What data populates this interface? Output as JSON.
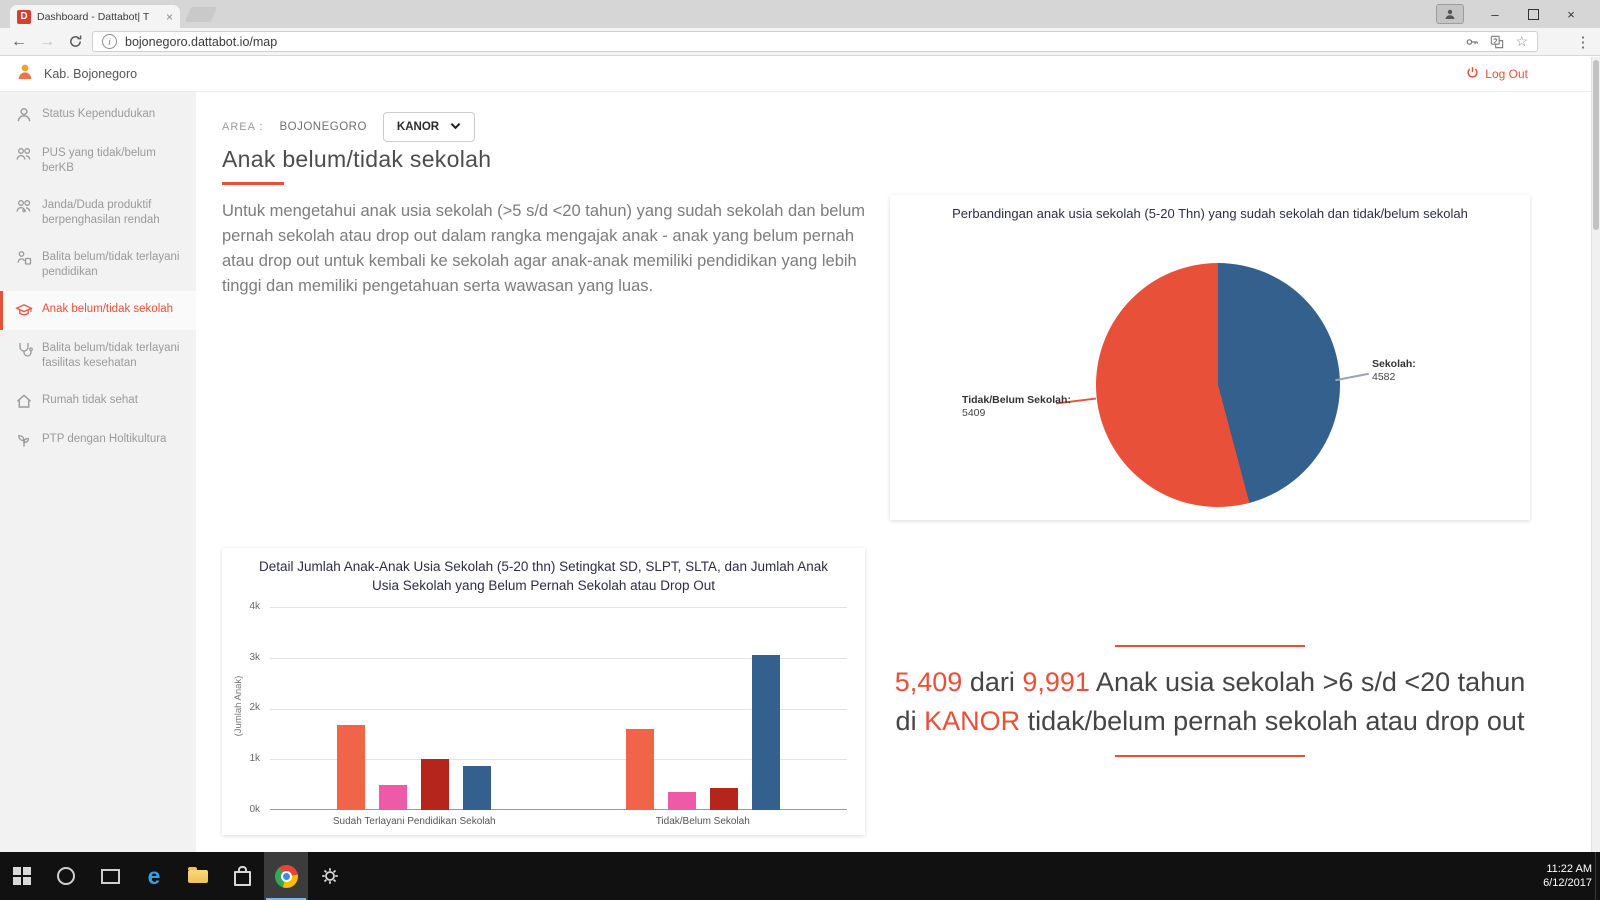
{
  "browser": {
    "tab_title": "Dashboard - Dattabot| T",
    "tab_favicon_letter": "D",
    "url": "bojonegoro.dattabot.io/map"
  },
  "header": {
    "brand": "Kab. Bojonegoro",
    "logout_label": "Log Out"
  },
  "sidebar": {
    "items": [
      {
        "label": "Status Kependudukan",
        "icon": "person-icon",
        "active": false
      },
      {
        "label": "PUS yang tidak/belum berKB",
        "icon": "couple-icon",
        "active": false
      },
      {
        "label": "Janda/Duda produktif berpenghasilan rendah",
        "icon": "family-icon",
        "active": false
      },
      {
        "label": "Balita belum/tidak terlayani pendidikan",
        "icon": "child-education-icon",
        "active": false
      },
      {
        "label": "Anak belum/tidak sekolah",
        "icon": "school-icon",
        "active": true
      },
      {
        "label": "Balita belum/tidak terlayani fasilitas kesehatan",
        "icon": "child-health-icon",
        "active": false
      },
      {
        "label": "Rumah tidak sehat",
        "icon": "house-icon",
        "active": false
      },
      {
        "label": "PTP dengan Holtikultura",
        "icon": "plant-icon",
        "active": false
      }
    ]
  },
  "main": {
    "area_label": "AREA :",
    "area_region": "BOJONEGORO",
    "area_dropdown_value": "KANOR",
    "page_title": "Anak belum/tidak sekolah",
    "description": "Untuk mengetahui anak usia sekolah (>5 s/d <20 tahun) yang sudah sekolah dan belum pernah sekolah atau drop out dalam rangka mengajak anak - anak yang belum pernah atau drop out untuk kembali ke sekolah agar anak-anak memiliki pendidikan yang lebih tinggi dan memiliki pengetahuan serta wawasan yang luas."
  },
  "summary": {
    "highlight_color": "#e8503a",
    "segments": [
      {
        "text": "5,409",
        "highlight": true
      },
      {
        "text": " dari ",
        "highlight": false
      },
      {
        "text": "9,991",
        "highlight": true
      },
      {
        "text": " Anak usia sekolah >6 s/d <20 tahun di ",
        "highlight": false
      },
      {
        "text": "KANOR",
        "highlight": true
      },
      {
        "text": " tidak/belum pernah sekolah atau drop out",
        "highlight": false
      }
    ]
  },
  "taskbar": {
    "time": "11:22 AM",
    "date": "6/12/2017",
    "apps": [
      {
        "icon": "start-icon",
        "active": false
      },
      {
        "icon": "search-icon",
        "active": false
      },
      {
        "icon": "task-view-icon",
        "active": false
      },
      {
        "icon": "edge-icon",
        "active": false
      },
      {
        "icon": "file-explorer-icon",
        "active": false
      },
      {
        "icon": "store-icon",
        "active": false
      },
      {
        "icon": "chrome-icon",
        "active": true
      },
      {
        "icon": "settings-icon",
        "active": false
      }
    ]
  },
  "chart_data": [
    {
      "type": "pie",
      "title": "Perbandingan anak usia sekolah (5-20 Thn) yang sudah sekolah dan tidak/belum sekolah",
      "slices": [
        {
          "label": "Sekolah",
          "value": 4582,
          "color": "#33608d"
        },
        {
          "label": "Tidak/Belum Sekolah",
          "value": 5409,
          "color": "#e8503a"
        }
      ],
      "start_angle_deg": 0,
      "legend_position": "callout-labels"
    },
    {
      "type": "bar",
      "title": "Detail Jumlah Anak-Anak Usia Sekolah (5-20 thn) Setingkat SD, SLPT, SLTA, dan Jumlah Anak Usia Sekolah yang Belum Pernah Sekolah atau Drop Out",
      "ylabel": "(Jumlah Anak)",
      "ylim": [
        0,
        4000
      ],
      "yticks": [
        "4k",
        "3k",
        "2k",
        "1k",
        "0k"
      ],
      "grid": true,
      "bar_colors": [
        "#f0644a",
        "#ee5aa8",
        "#b6251c",
        "#33608d"
      ],
      "categories": [
        "Sudah Terlayani Pendidikan Sekolah",
        "Tidak/Belum Sekolah"
      ],
      "groups": [
        {
          "category": "Sudah Terlayani Pendidikan Sekolah",
          "values": [
            1670,
            500,
            1000,
            860
          ]
        },
        {
          "category": "Tidak/Belum Sekolah",
          "values": [
            1590,
            350,
            430,
            3050
          ]
        }
      ]
    }
  ]
}
